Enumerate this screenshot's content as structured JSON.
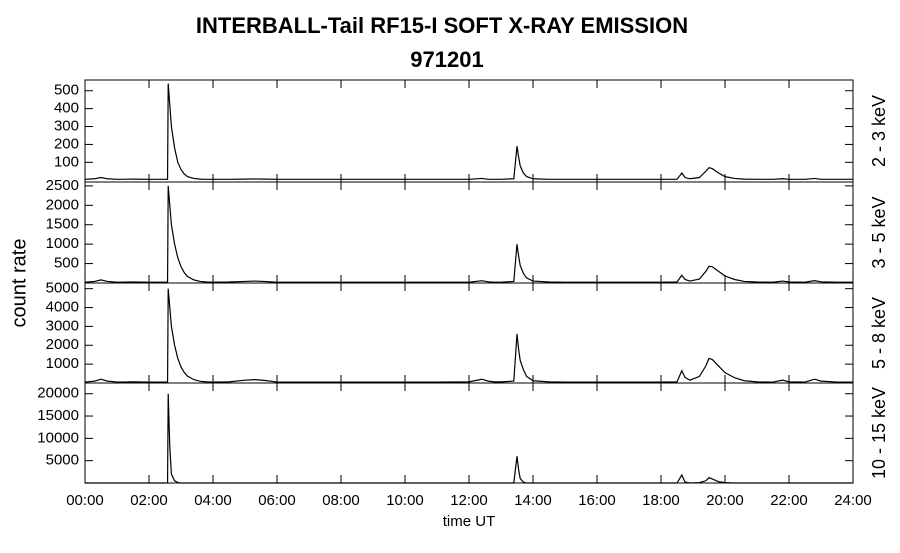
{
  "chart_data": [
    {
      "type": "line",
      "title": "INTERBALL-Tail RF15-I SOFT X-RAY EMISSION",
      "subtitle": "971201",
      "ylabel": "2 - 3 keV",
      "x": [
        0,
        0.3,
        0.5,
        0.7,
        1,
        1.5,
        2,
        2.5,
        2.58,
        2.6,
        2.65,
        2.7,
        2.8,
        2.9,
        3,
        3.1,
        3.2,
        3.4,
        3.6,
        3.8,
        4,
        4.5,
        5,
        5.3,
        5.6,
        6,
        7,
        8,
        9,
        10,
        11,
        12,
        12.4,
        12.6,
        12.8,
        13,
        13.4,
        13.5,
        13.55,
        13.6,
        13.7,
        13.8,
        14,
        14.5,
        15,
        16,
        17,
        18,
        18.5,
        18.65,
        18.75,
        18.9,
        19.2,
        19.4,
        19.5,
        19.6,
        19.8,
        20,
        20.3,
        20.6,
        21,
        21.5,
        21.8,
        22,
        22.5,
        22.8,
        23,
        23.5,
        24
      ],
      "values": [
        5,
        8,
        15,
        8,
        5,
        6,
        5,
        5,
        5,
        540,
        420,
        300,
        180,
        100,
        60,
        35,
        20,
        10,
        6,
        5,
        5,
        5,
        6,
        7,
        6,
        5,
        5,
        5,
        5,
        5,
        5,
        5,
        10,
        5,
        5,
        5,
        8,
        190,
        130,
        80,
        40,
        20,
        8,
        5,
        5,
        5,
        5,
        5,
        5,
        40,
        15,
        8,
        15,
        50,
        70,
        65,
        40,
        20,
        10,
        6,
        5,
        5,
        8,
        5,
        5,
        10,
        5,
        5,
        5
      ],
      "xlim": [
        0,
        24
      ],
      "ylim": [
        -10,
        560
      ],
      "yticks": [
        100,
        200,
        300,
        400,
        500
      ],
      "color": "#000000"
    },
    {
      "type": "line",
      "ylabel": "3 - 5 keV",
      "shared_ylabel": "count rate",
      "x": [
        0,
        0.3,
        0.5,
        0.7,
        1,
        1.5,
        2,
        2.5,
        2.58,
        2.6,
        2.65,
        2.7,
        2.8,
        2.9,
        3,
        3.1,
        3.2,
        3.4,
        3.6,
        3.8,
        4,
        4.5,
        5,
        5.3,
        5.6,
        6,
        7,
        8,
        9,
        10,
        11,
        12,
        12.4,
        12.6,
        12.8,
        13,
        13.4,
        13.5,
        13.55,
        13.6,
        13.7,
        13.8,
        14,
        14.5,
        15,
        16,
        17,
        18,
        18.5,
        18.65,
        18.75,
        18.9,
        19.2,
        19.4,
        19.5,
        19.6,
        19.8,
        20,
        20.3,
        20.6,
        21,
        21.5,
        21.8,
        22,
        22.5,
        22.8,
        23,
        23.5,
        24
      ],
      "values": [
        20,
        40,
        80,
        40,
        20,
        25,
        20,
        20,
        20,
        2500,
        2000,
        1500,
        1000,
        650,
        420,
        270,
        170,
        80,
        40,
        25,
        20,
        25,
        40,
        50,
        40,
        20,
        20,
        20,
        20,
        20,
        20,
        20,
        60,
        30,
        20,
        20,
        40,
        1000,
        700,
        450,
        250,
        130,
        50,
        25,
        20,
        20,
        20,
        20,
        25,
        200,
        90,
        50,
        100,
        300,
        430,
        420,
        300,
        180,
        90,
        40,
        25,
        20,
        50,
        25,
        20,
        60,
        30,
        20,
        20
      ],
      "xlim": [
        0,
        24
      ],
      "ylim": [
        0,
        2600
      ],
      "yticks": [
        500,
        1000,
        1500,
        2000,
        2500
      ],
      "color": "#000000"
    },
    {
      "type": "line",
      "ylabel": "5 - 8 keV",
      "x": [
        0,
        0.3,
        0.5,
        0.7,
        1,
        1.5,
        2,
        2.5,
        2.58,
        2.6,
        2.65,
        2.7,
        2.8,
        2.9,
        3,
        3.1,
        3.2,
        3.4,
        3.6,
        3.8,
        4,
        4.5,
        5,
        5.3,
        5.6,
        6,
        7,
        8,
        9,
        10,
        11,
        12,
        12.4,
        12.6,
        12.8,
        13,
        13.4,
        13.5,
        13.55,
        13.6,
        13.7,
        13.8,
        14,
        14.5,
        15,
        16,
        17,
        18,
        18.5,
        18.65,
        18.75,
        18.9,
        19.2,
        19.4,
        19.5,
        19.6,
        19.8,
        20,
        20.3,
        20.6,
        21,
        21.5,
        21.8,
        22,
        22.5,
        22.8,
        23,
        23.5,
        24
      ],
      "values": [
        50,
        100,
        200,
        100,
        50,
        60,
        50,
        50,
        50,
        5000,
        4000,
        3000,
        2000,
        1300,
        850,
        560,
        370,
        180,
        90,
        60,
        50,
        60,
        150,
        180,
        140,
        50,
        50,
        50,
        50,
        50,
        50,
        60,
        200,
        100,
        60,
        60,
        100,
        2600,
        1800,
        1200,
        700,
        350,
        120,
        60,
        50,
        50,
        50,
        50,
        60,
        650,
        300,
        150,
        350,
        900,
        1300,
        1250,
        900,
        550,
        280,
        120,
        60,
        50,
        150,
        60,
        50,
        200,
        100,
        50,
        50
      ],
      "xlim": [
        0,
        24
      ],
      "ylim": [
        0,
        5300
      ],
      "yticks": [
        1000,
        2000,
        3000,
        4000,
        5000
      ],
      "color": "#000000"
    },
    {
      "type": "line",
      "ylabel": "10 - 15 keV",
      "xlabel": "time UT",
      "x": [
        0,
        0.3,
        0.5,
        0.7,
        1,
        1.5,
        2,
        2.5,
        2.58,
        2.6,
        2.65,
        2.7,
        2.8,
        2.9,
        3,
        3.1,
        3.2,
        3.4,
        3.6,
        3.8,
        4,
        4.5,
        5,
        5.3,
        5.6,
        6,
        7,
        8,
        9,
        10,
        11,
        12,
        12.4,
        12.6,
        12.8,
        13,
        13.4,
        13.5,
        13.55,
        13.6,
        13.7,
        13.8,
        14,
        14.5,
        15,
        16,
        17,
        18,
        18.5,
        18.65,
        18.75,
        18.9,
        19.2,
        19.4,
        19.5,
        19.6,
        19.8,
        20,
        20.3,
        20.6,
        21,
        21.5,
        21.8,
        22,
        22.5,
        22.8,
        23,
        23.5,
        24
      ],
      "values": [
        0,
        0,
        0,
        0,
        0,
        0,
        0,
        0,
        0,
        20000,
        8000,
        2000,
        500,
        100,
        0,
        0,
        0,
        0,
        0,
        0,
        0,
        0,
        0,
        0,
        0,
        0,
        0,
        0,
        0,
        0,
        0,
        0,
        0,
        0,
        0,
        0,
        0,
        6000,
        3000,
        1000,
        200,
        0,
        0,
        0,
        0,
        0,
        0,
        0,
        0,
        1800,
        200,
        0,
        100,
        500,
        1200,
        900,
        300,
        100,
        0,
        0,
        0,
        0,
        0,
        0,
        0,
        0,
        0,
        0,
        0
      ],
      "xlim": [
        0,
        24
      ],
      "ylim": [
        0,
        22400
      ],
      "yticks": [
        5000,
        10000,
        15000,
        20000
      ],
      "color": "#000000",
      "xticks": [
        {
          "value": 0,
          "label": "00:00"
        },
        {
          "value": 2,
          "label": "02:00"
        },
        {
          "value": 4,
          "label": "04:00"
        },
        {
          "value": 6,
          "label": "06:00"
        },
        {
          "value": 8,
          "label": "08:00"
        },
        {
          "value": 10,
          "label": "10:00"
        },
        {
          "value": 12,
          "label": "12:00"
        },
        {
          "value": 14,
          "label": "14:00"
        },
        {
          "value": 16,
          "label": "16:00"
        },
        {
          "value": 18,
          "label": "18:00"
        },
        {
          "value": 20,
          "label": "20:00"
        },
        {
          "value": 22,
          "label": "22:00"
        },
        {
          "value": 24,
          "label": "24:00"
        }
      ]
    }
  ]
}
